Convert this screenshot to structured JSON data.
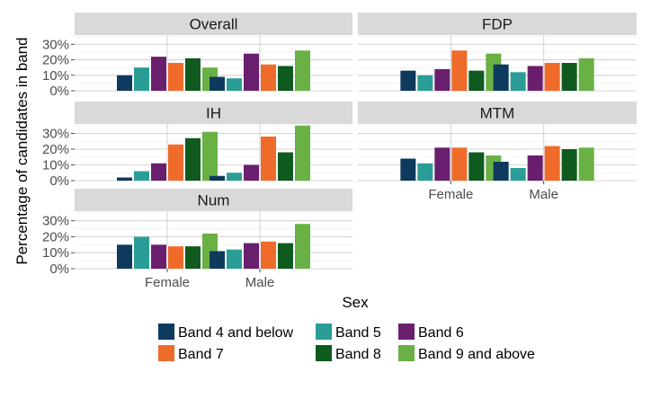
{
  "chart_data": {
    "type": "bar",
    "xlabel": "Sex",
    "ylabel": "Percentage of candidates in band",
    "categories": [
      "Female",
      "Male"
    ],
    "ylim": [
      0,
      0.36
    ],
    "y_ticks": [
      0,
      0.1,
      0.2,
      0.3
    ],
    "y_tick_labels": [
      "0%",
      "10%",
      "20%",
      "30%"
    ],
    "grid": true,
    "legend_position": "bottom",
    "legend_title": "",
    "bands": [
      {
        "name": "Band 4 and below",
        "color": "#0e3a5e"
      },
      {
        "name": "Band 5",
        "color": "#2a9d96"
      },
      {
        "name": "Band 6",
        "color": "#6a1f6e"
      },
      {
        "name": "Band 7",
        "color": "#ef6b2a"
      },
      {
        "name": "Band 8",
        "color": "#0f5a1e"
      },
      {
        "name": "Band 9 and above",
        "color": "#69b045"
      }
    ],
    "panels": [
      {
        "title": "Overall",
        "values": {
          "Female": [
            0.1,
            0.15,
            0.22,
            0.18,
            0.21,
            0.15
          ],
          "Male": [
            0.09,
            0.08,
            0.24,
            0.17,
            0.16,
            0.26
          ]
        }
      },
      {
        "title": "FDP",
        "values": {
          "Female": [
            0.13,
            0.1,
            0.14,
            0.26,
            0.13,
            0.24
          ],
          "Male": [
            0.17,
            0.12,
            0.16,
            0.18,
            0.18,
            0.21
          ]
        }
      },
      {
        "title": "IH",
        "values": {
          "Female": [
            0.02,
            0.06,
            0.11,
            0.23,
            0.27,
            0.31
          ],
          "Male": [
            0.03,
            0.05,
            0.1,
            0.28,
            0.18,
            0.35
          ]
        }
      },
      {
        "title": "MTM",
        "values": {
          "Female": [
            0.14,
            0.11,
            0.21,
            0.21,
            0.18,
            0.16
          ],
          "Male": [
            0.12,
            0.08,
            0.16,
            0.22,
            0.2,
            0.21
          ]
        }
      },
      {
        "title": "Num",
        "values": {
          "Female": [
            0.15,
            0.2,
            0.15,
            0.14,
            0.14,
            0.22
          ],
          "Male": [
            0.11,
            0.12,
            0.16,
            0.17,
            0.16,
            0.28
          ]
        }
      }
    ]
  }
}
